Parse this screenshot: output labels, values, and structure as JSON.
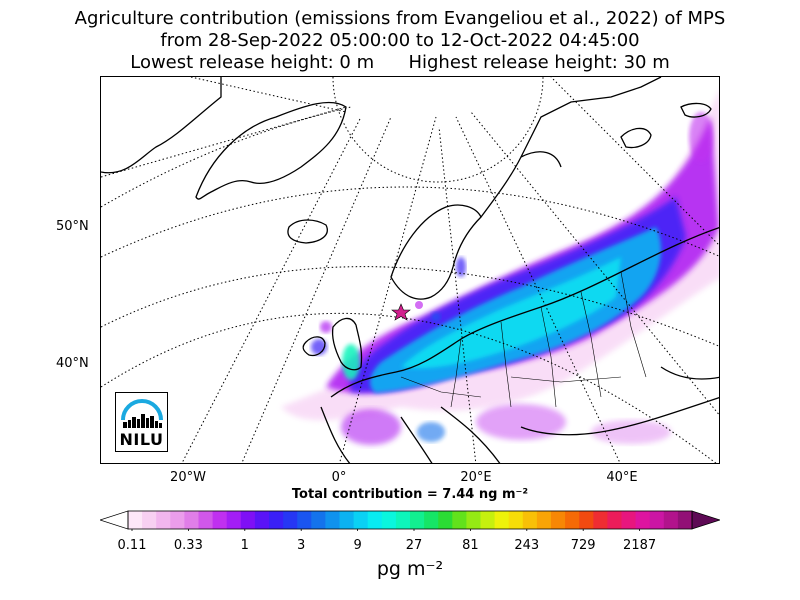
{
  "title": {
    "line1": "Agriculture contribution (emissions from Evangeliou et al., 2022) of MPS",
    "line2": "from 28-Sep-2022 05:00:00 to 12-Oct-2022 04:45:00",
    "line3": "Lowest release height: 0 m      Highest release height: 30 m"
  },
  "map": {
    "lat_labels": [
      "50°N",
      "40°N"
    ],
    "lon_labels": [
      "20°W",
      "0°",
      "20°E",
      "40°E"
    ],
    "release_site_marker": "star-icon",
    "colors": {
      "coast": "#000000",
      "graticule": "#000000",
      "release_site": "#d11f8e"
    }
  },
  "summary": {
    "total_contribution": "Total contribution = 7.44 ng m⁻²"
  },
  "colorbar": {
    "tick_labels": [
      "0.11",
      "0.33",
      "1",
      "3",
      "9",
      "27",
      "81",
      "243",
      "729",
      "2187"
    ],
    "unit": "pg m⁻²",
    "colors": [
      "#fde7f8",
      "#f8d0f2",
      "#f2b6ee",
      "#eb9deb",
      "#e07ee8",
      "#d157ea",
      "#c030f0",
      "#a31ef5",
      "#7f10f5",
      "#5a14f6",
      "#3a20f7",
      "#2637f4",
      "#1a55f0",
      "#1473ec",
      "#1092ee",
      "#0cb2f1",
      "#0ad1f4",
      "#08ebf2",
      "#0af6de",
      "#0df5bb",
      "#12ef90",
      "#16e566",
      "#2bdc34",
      "#62e21c",
      "#95ea14",
      "#c6f00e",
      "#eef20a",
      "#f7dd08",
      "#f8c007",
      "#f8a406",
      "#f78705",
      "#f56a06",
      "#f24a10",
      "#ef2d32",
      "#ec1c5a",
      "#e8167e",
      "#de14a0",
      "#cb16a4",
      "#b2138c",
      "#921076"
    ]
  },
  "logo": {
    "text": "NILU"
  }
}
